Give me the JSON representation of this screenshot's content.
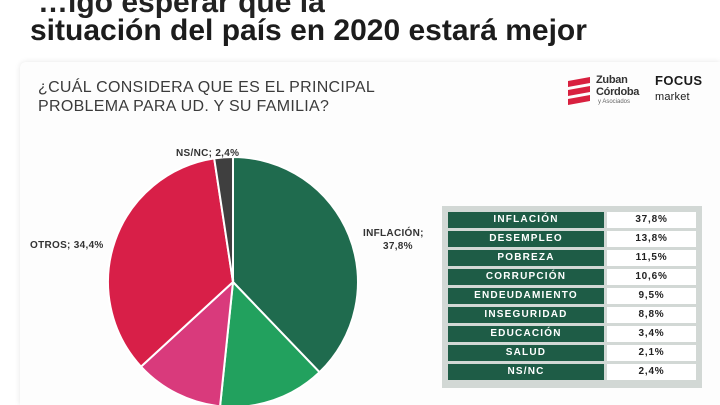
{
  "headline": {
    "line1_cut": "…igo esperar que la",
    "line2": "situación del país en 2020 estará mejor"
  },
  "question": {
    "line1": "¿CUÁL CONSIDERA QUE ES EL PRINCIPAL",
    "line2": "PROBLEMA PARA UD. Y SU FAMILIA?"
  },
  "logos": {
    "zuban_line1": "Zuban",
    "zuban_line2": "Córdoba",
    "zuban_line3": "y Asociados",
    "focus_line1": "FOCUS",
    "focus_line2": "market"
  },
  "pie_labels": {
    "nsnc": "NS/NC; 2,4%",
    "inflacion_name": "INFLACIÓN;",
    "inflacion_value": "37,8%",
    "otros": "OTROS; 34,4%"
  },
  "chart_data": [
    {
      "type": "pie",
      "title": "¿CUÁL CONSIDERA QUE ES EL PRINCIPAL PROBLEMA PARA UD. Y SU FAMILIA?",
      "start_angle_deg": 0,
      "direction": "clockwise",
      "slices": [
        {
          "label": "INFLACIÓN",
          "value": 37.8,
          "color": "#1f6b4e"
        },
        {
          "label": "DESEMPLEO",
          "value": 13.8,
          "color": "#22a15e"
        },
        {
          "label": "POBREZA",
          "value": 11.5,
          "color": "#d93a7c"
        },
        {
          "label": "OTROS",
          "value": 34.4,
          "color": "#d81f48"
        },
        {
          "label": "NS/NC",
          "value": 2.4,
          "color": "#3f3f3f"
        }
      ]
    },
    {
      "type": "table",
      "rows": [
        {
          "label": "INFLACIÓN",
          "value": "37,8%"
        },
        {
          "label": "DESEMPLEO",
          "value": "13,8%"
        },
        {
          "label": "POBREZA",
          "value": "11,5%"
        },
        {
          "label": "CORRUPCIÓN",
          "value": "10,6%"
        },
        {
          "label": "ENDEUDAMIENTO",
          "value": "9,5%"
        },
        {
          "label": "INSEGURIDAD",
          "value": "8,8%"
        },
        {
          "label": "EDUCACIÓN",
          "value": "3,4%"
        },
        {
          "label": "SALUD",
          "value": "2,1%"
        },
        {
          "label": "NS/NC",
          "value": "2,4%"
        }
      ]
    }
  ],
  "colors": {
    "table_label_bg": "#1e5c46",
    "table_bg": "#d2d8d5",
    "logo_red": "#d8203f"
  }
}
